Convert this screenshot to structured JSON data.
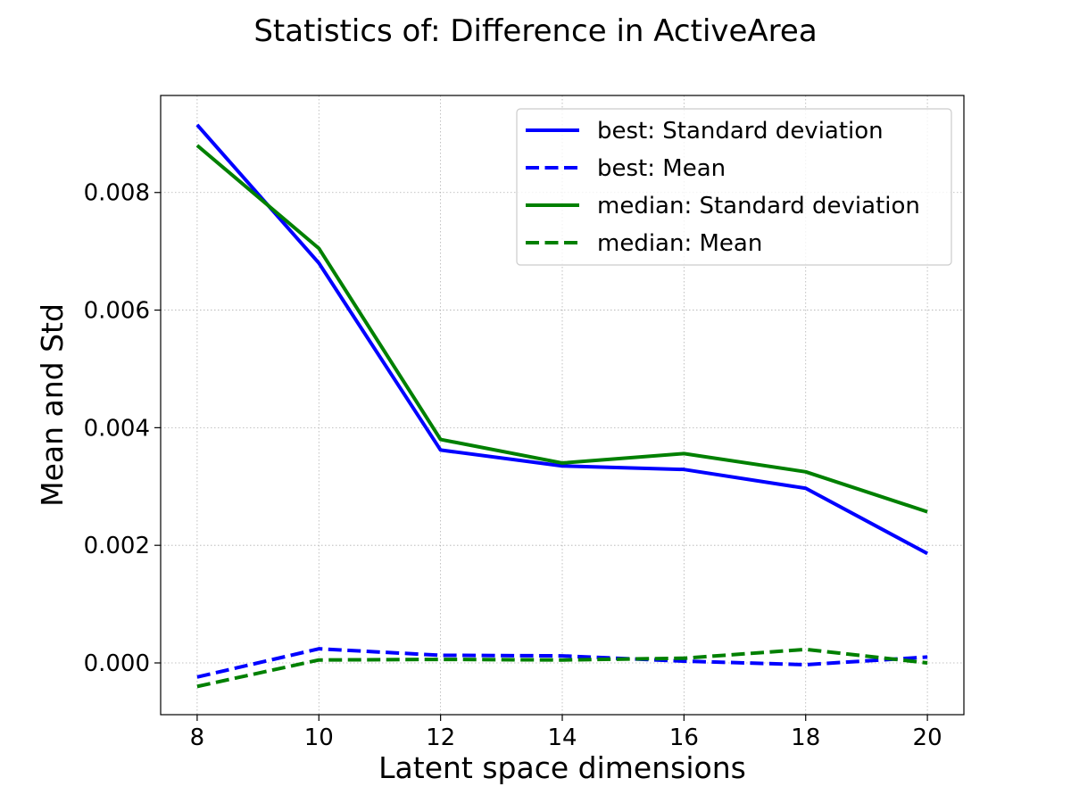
{
  "chart_data": {
    "type": "line",
    "title": "Statistics of: Difference in ActiveArea",
    "xlabel": "Latent space dimensions",
    "ylabel": "Mean and Std",
    "x": [
      8,
      10,
      12,
      14,
      16,
      18,
      20
    ],
    "xlim": [
      7.4,
      20.6
    ],
    "ylim": [
      -0.00088,
      0.00965
    ],
    "xticks": [
      "8",
      "10",
      "12",
      "14",
      "16",
      "18",
      "20"
    ],
    "yticks": [
      "0.000",
      "0.002",
      "0.004",
      "0.006",
      "0.008"
    ],
    "ytick_values": [
      0.0,
      0.002,
      0.004,
      0.006,
      0.008
    ],
    "grid": true,
    "legend_position": "top-right",
    "series": [
      {
        "name": "best: Standard deviation",
        "color": "#0000ff",
        "style": "solid",
        "values": [
          0.00915,
          0.0068,
          0.00362,
          0.00335,
          0.00329,
          0.00297,
          0.00186
        ]
      },
      {
        "name": "best: Mean",
        "color": "#0000ff",
        "style": "dashed",
        "values": [
          -0.00024,
          0.00024,
          0.00013,
          0.00012,
          3e-05,
          -3e-05,
          0.0001
        ]
      },
      {
        "name": "median: Standard deviation",
        "color": "#008000",
        "style": "solid",
        "values": [
          0.0088,
          0.00705,
          0.0038,
          0.0034,
          0.00356,
          0.00325,
          0.00257
        ]
      },
      {
        "name": "median: Mean",
        "color": "#008000",
        "style": "dashed",
        "values": [
          -0.0004,
          5e-05,
          6e-05,
          5e-05,
          8e-05,
          0.00023,
          0.0
        ]
      }
    ]
  }
}
